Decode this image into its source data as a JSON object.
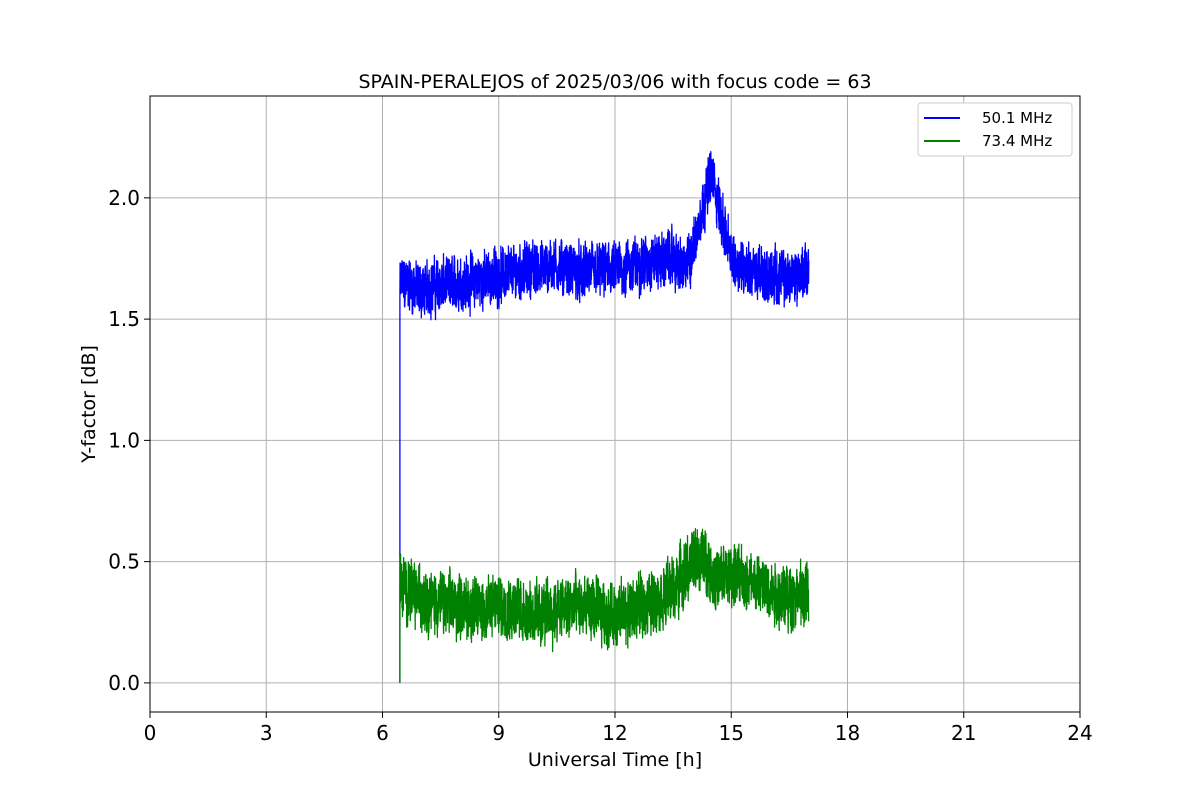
{
  "chart_data": {
    "type": "line",
    "title": "SPAIN-PERALEJOS of 2025/03/06 with focus code = 63",
    "xlabel": "Universal Time [h]",
    "ylabel": "Y-factor [dB]",
    "xlim": [
      0,
      24
    ],
    "ylim": [
      -0.12,
      2.42
    ],
    "xticks": [
      0,
      3,
      6,
      9,
      12,
      15,
      18,
      21,
      24
    ],
    "yticks": [
      0.0,
      0.5,
      1.0,
      1.5,
      2.0
    ],
    "ytick_labels": [
      "0.0",
      "0.5",
      "1.0",
      "1.5",
      "2.0"
    ],
    "grid": true,
    "legend_position": "top-right",
    "series": [
      {
        "name": "50.1 MHz",
        "color": "#0000ff",
        "x": [
          6.45,
          6.5,
          7.0,
          7.5,
          8.0,
          8.5,
          9.0,
          9.5,
          10.0,
          10.5,
          11.0,
          11.5,
          12.0,
          12.5,
          13.0,
          13.5,
          13.8,
          14.0,
          14.2,
          14.4,
          14.5,
          14.7,
          15.0,
          15.5,
          16.0,
          16.5,
          17.0
        ],
        "values": [
          1.62,
          1.65,
          1.62,
          1.64,
          1.65,
          1.66,
          1.68,
          1.7,
          1.71,
          1.72,
          1.69,
          1.7,
          1.7,
          1.72,
          1.74,
          1.75,
          1.7,
          1.78,
          1.92,
          2.05,
          2.1,
          1.95,
          1.75,
          1.7,
          1.68,
          1.67,
          1.7
        ],
        "noise_amplitude": 0.12
      },
      {
        "name": "73.4 MHz",
        "color": "#008000",
        "x": [
          6.45,
          6.5,
          7.0,
          7.5,
          8.0,
          8.5,
          9.0,
          9.5,
          10.0,
          10.5,
          11.0,
          11.5,
          12.0,
          12.5,
          13.0,
          13.5,
          14.0,
          14.3,
          14.6,
          15.0,
          15.5,
          16.0,
          16.5,
          17.0
        ],
        "values": [
          0.42,
          0.4,
          0.35,
          0.33,
          0.32,
          0.3,
          0.32,
          0.31,
          0.28,
          0.3,
          0.32,
          0.3,
          0.28,
          0.3,
          0.34,
          0.38,
          0.5,
          0.52,
          0.42,
          0.45,
          0.42,
          0.38,
          0.35,
          0.36
        ],
        "noise_amplitude": 0.14
      }
    ]
  }
}
